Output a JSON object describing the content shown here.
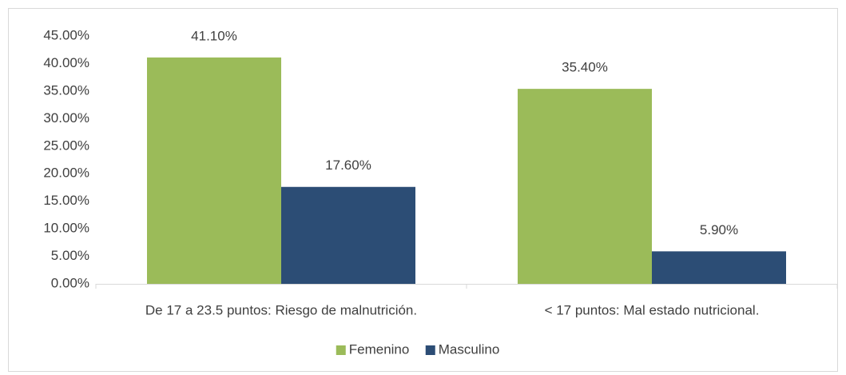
{
  "chart_data": {
    "type": "bar",
    "categories": [
      "De 17 a 23.5 puntos: Riesgo de malnutrición.",
      "< 17 puntos: Mal estado nutricional."
    ],
    "series": [
      {
        "name": "Femenino",
        "color": "#9bbb59",
        "values": [
          41.1,
          35.4
        ],
        "value_labels": [
          "41.10%",
          "35.40%"
        ]
      },
      {
        "name": "Masculino",
        "color": "#2c4d75",
        "values": [
          17.6,
          5.9
        ],
        "value_labels": [
          "17.60%",
          "5.90%"
        ]
      }
    ],
    "ylim": [
      0,
      45
    ],
    "yticks": [
      {
        "value": 0,
        "label": "0.00%"
      },
      {
        "value": 5,
        "label": "5.00%"
      },
      {
        "value": 10,
        "label": "10.00%"
      },
      {
        "value": 15,
        "label": "15.00%"
      },
      {
        "value": 20,
        "label": "20.00%"
      },
      {
        "value": 25,
        "label": "25.00%"
      },
      {
        "value": 30,
        "label": "30.00%"
      },
      {
        "value": 35,
        "label": "35.00%"
      },
      {
        "value": 40,
        "label": "40.00%"
      },
      {
        "value": 45,
        "label": "45.00%"
      }
    ],
    "grid": false,
    "legend": "bottom"
  }
}
